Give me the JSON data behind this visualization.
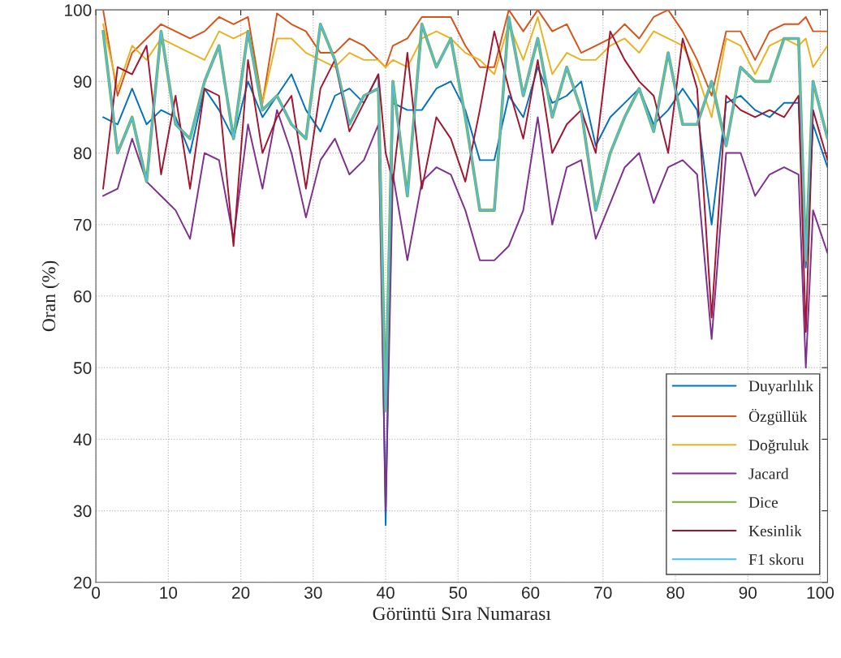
{
  "chart_data": {
    "type": "line",
    "xlabel": "Görüntü Sıra Numarası",
    "ylabel": "Oran (%)",
    "x": [
      1,
      3,
      5,
      7,
      9,
      11,
      13,
      15,
      17,
      19,
      21,
      23,
      25,
      27,
      29,
      31,
      33,
      35,
      37,
      39,
      40,
      41,
      43,
      45,
      47,
      49,
      51,
      53,
      55,
      57,
      59,
      61,
      63,
      65,
      67,
      69,
      71,
      73,
      75,
      77,
      79,
      81,
      83,
      85,
      87,
      89,
      91,
      93,
      95,
      97,
      98,
      99,
      101
    ],
    "xlim": [
      0,
      101
    ],
    "xticks": [
      0,
      10,
      20,
      30,
      40,
      50,
      60,
      70,
      80,
      90,
      100
    ],
    "ylim": [
      20,
      100
    ],
    "yticks": [
      20,
      30,
      40,
      50,
      60,
      70,
      80,
      90,
      100
    ],
    "grid": true,
    "legend": "bottom right",
    "marker": "none",
    "line_style": "solid",
    "series": [
      {
        "name": "Duyarlılık",
        "color": "#0072bd",
        "values": [
          85,
          84,
          89,
          84,
          86,
          85,
          80,
          89,
          86,
          82,
          90,
          85,
          88,
          91,
          86,
          83,
          88,
          89,
          87,
          91,
          28,
          87,
          86,
          86,
          89,
          90,
          86,
          79,
          79,
          88,
          85,
          92,
          87,
          88,
          90,
          81,
          85,
          87,
          89,
          84,
          86,
          89,
          86,
          70,
          87,
          88,
          86,
          85,
          87,
          87,
          64,
          84,
          78
        ]
      },
      {
        "name": "Özgüllük",
        "color": "#d95319",
        "values": [
          100,
          88,
          94,
          96,
          98,
          97,
          96,
          97,
          99,
          98,
          99,
          87,
          99.5,
          98,
          97,
          94,
          94,
          96,
          95,
          93,
          92,
          95,
          96,
          99,
          99,
          99,
          95,
          92,
          92,
          100,
          97,
          100,
          97,
          98,
          94,
          95,
          96,
          98,
          96,
          99,
          100,
          97,
          93,
          88,
          97,
          97,
          93,
          97,
          98,
          98,
          99,
          97,
          97
        ]
      },
      {
        "name": "Doğruluk",
        "color": "#edb120",
        "values": [
          98,
          89,
          95,
          93,
          96,
          95,
          94,
          93,
          97,
          96,
          97,
          87,
          96,
          96,
          94,
          93,
          92,
          94,
          93,
          93,
          92,
          93,
          92,
          96,
          97,
          96,
          94,
          93,
          91,
          98,
          93,
          99,
          91,
          94,
          93,
          93,
          95,
          96,
          94,
          97,
          96,
          95,
          91,
          85,
          96,
          95,
          91,
          95,
          96,
          95,
          96,
          92,
          95
        ]
      },
      {
        "name": "Jacard",
        "color": "#7e2f8e",
        "values": [
          74,
          75,
          82,
          76,
          74,
          72,
          68,
          80,
          79,
          68,
          84,
          75,
          86,
          80,
          71,
          79,
          82,
          77,
          79,
          84,
          30,
          77,
          65,
          76,
          78,
          77,
          72,
          65,
          65,
          67,
          72,
          85,
          70,
          78,
          79,
          68,
          73,
          78,
          80,
          73,
          78,
          79,
          77,
          54,
          80,
          80,
          74,
          77,
          78,
          77,
          50,
          72,
          66
        ]
      },
      {
        "name": "Dice",
        "color": "#77ac30",
        "values": [
          97,
          80,
          85,
          76,
          97,
          84,
          82,
          90,
          95,
          82,
          97,
          86,
          88,
          84,
          82,
          98,
          93,
          84,
          88,
          89,
          44,
          90,
          74,
          98,
          92,
          96,
          85,
          72,
          72,
          99,
          88,
          96,
          85,
          92,
          86,
          72,
          80,
          85,
          89,
          83,
          94,
          84,
          84,
          90,
          81,
          92,
          90,
          90,
          96,
          96,
          65,
          90,
          82
        ]
      },
      {
        "name": "Kesinlik",
        "color": "#a2142f",
        "values": [
          75,
          92,
          91,
          95,
          77,
          88,
          75,
          89,
          88,
          67,
          93,
          80,
          85,
          88,
          75,
          89,
          93,
          83,
          87,
          91,
          80,
          76,
          94,
          75,
          85,
          82,
          76,
          86,
          97,
          89,
          82,
          93,
          80,
          84,
          86,
          80,
          97,
          93,
          90,
          88,
          80,
          96,
          89,
          57,
          88,
          86,
          85,
          86,
          85,
          88,
          55,
          86,
          79
        ]
      },
      {
        "name": "F1 skoru",
        "color": "#4dbeee",
        "values": [
          97,
          80,
          85,
          76,
          97,
          84,
          82,
          90,
          95,
          82,
          97,
          86,
          88,
          84,
          82,
          98,
          93,
          84,
          88,
          89,
          44,
          90,
          74,
          98,
          92,
          96,
          85,
          72,
          72,
          99,
          88,
          96,
          85,
          92,
          86,
          72,
          80,
          85,
          89,
          83,
          94,
          84,
          84,
          90,
          81,
          92,
          90,
          90,
          96,
          96,
          65,
          90,
          82
        ]
      }
    ]
  }
}
